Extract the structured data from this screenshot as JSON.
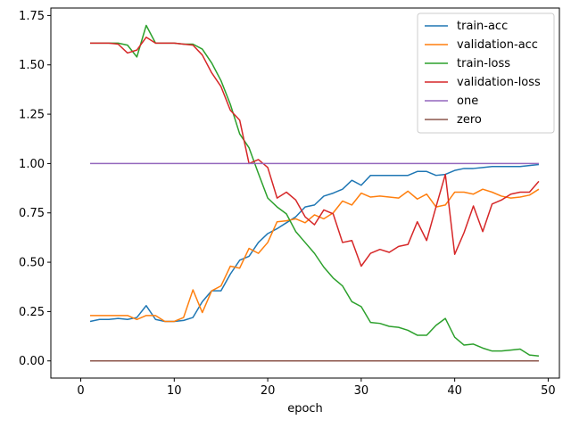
{
  "chart_data": {
    "type": "line",
    "title": "",
    "xlabel": "epoch",
    "ylabel": "",
    "xlim": [
      -3.2,
      51.2
    ],
    "ylim": [
      -0.087,
      1.788
    ],
    "xticks": [
      0,
      10,
      20,
      30,
      40,
      50
    ],
    "yticks": [
      0.0,
      0.25,
      0.5,
      0.75,
      1.0,
      1.25,
      1.5,
      1.75
    ],
    "ytick_labels": [
      "0.00",
      "0.25",
      "0.50",
      "0.75",
      "1.00",
      "1.25",
      "1.50",
      "1.75"
    ],
    "grid": false,
    "legend_position": "upper right",
    "x": [
      1,
      2,
      3,
      4,
      5,
      6,
      7,
      8,
      9,
      10,
      11,
      12,
      13,
      14,
      15,
      16,
      17,
      18,
      19,
      20,
      21,
      22,
      23,
      24,
      25,
      26,
      27,
      28,
      29,
      30,
      31,
      32,
      33,
      34,
      35,
      36,
      37,
      38,
      39,
      40,
      41,
      42,
      43,
      44,
      45,
      46,
      47,
      48,
      49
    ],
    "series": [
      {
        "name": "train-acc",
        "color": "#1f77b4",
        "values": [
          0.2,
          0.21,
          0.21,
          0.215,
          0.21,
          0.22,
          0.28,
          0.21,
          0.2,
          0.2,
          0.205,
          0.22,
          0.3,
          0.355,
          0.355,
          0.44,
          0.51,
          0.53,
          0.6,
          0.645,
          0.67,
          0.7,
          0.73,
          0.78,
          0.79,
          0.835,
          0.85,
          0.87,
          0.915,
          0.89,
          0.94,
          0.94,
          0.94,
          0.94,
          0.94,
          0.96,
          0.96,
          0.94,
          0.945,
          0.965,
          0.975,
          0.975,
          0.98,
          0.985,
          0.985,
          0.985,
          0.985,
          0.99,
          0.995
        ]
      },
      {
        "name": "validation-acc",
        "color": "#ff7f0e",
        "values": [
          0.23,
          0.23,
          0.23,
          0.23,
          0.23,
          0.21,
          0.23,
          0.23,
          0.2,
          0.2,
          0.22,
          0.36,
          0.245,
          0.355,
          0.38,
          0.48,
          0.47,
          0.57,
          0.545,
          0.6,
          0.705,
          0.71,
          0.72,
          0.7,
          0.74,
          0.72,
          0.75,
          0.81,
          0.79,
          0.85,
          0.83,
          0.835,
          0.83,
          0.825,
          0.86,
          0.82,
          0.845,
          0.78,
          0.79,
          0.855,
          0.855,
          0.845,
          0.87,
          0.855,
          0.835,
          0.825,
          0.83,
          0.84,
          0.87
        ]
      },
      {
        "name": "train-loss",
        "color": "#2ca02c",
        "values": [
          1.61,
          1.61,
          1.61,
          1.61,
          1.6,
          1.54,
          1.7,
          1.61,
          1.61,
          1.61,
          1.605,
          1.605,
          1.58,
          1.51,
          1.42,
          1.3,
          1.15,
          1.08,
          0.95,
          0.825,
          0.78,
          0.745,
          0.655,
          0.6,
          0.545,
          0.475,
          0.42,
          0.38,
          0.3,
          0.275,
          0.195,
          0.19,
          0.175,
          0.17,
          0.155,
          0.13,
          0.13,
          0.18,
          0.215,
          0.12,
          0.08,
          0.085,
          0.065,
          0.05,
          0.05,
          0.055,
          0.06,
          0.03,
          0.025
        ]
      },
      {
        "name": "validation-loss",
        "color": "#d62728",
        "values": [
          1.61,
          1.61,
          1.61,
          1.605,
          1.56,
          1.575,
          1.64,
          1.61,
          1.61,
          1.61,
          1.605,
          1.6,
          1.55,
          1.46,
          1.39,
          1.27,
          1.22,
          1.0,
          1.02,
          0.98,
          0.825,
          0.855,
          0.815,
          0.73,
          0.69,
          0.765,
          0.745,
          0.6,
          0.61,
          0.48,
          0.545,
          0.565,
          0.55,
          0.58,
          0.59,
          0.705,
          0.61,
          0.78,
          0.945,
          0.54,
          0.65,
          0.785,
          0.655,
          0.795,
          0.815,
          0.845,
          0.855,
          0.855,
          0.91
        ]
      },
      {
        "name": "one",
        "color": "#9467bd",
        "values": [
          1,
          1,
          1,
          1,
          1,
          1,
          1,
          1,
          1,
          1,
          1,
          1,
          1,
          1,
          1,
          1,
          1,
          1,
          1,
          1,
          1,
          1,
          1,
          1,
          1,
          1,
          1,
          1,
          1,
          1,
          1,
          1,
          1,
          1,
          1,
          1,
          1,
          1,
          1,
          1,
          1,
          1,
          1,
          1,
          1,
          1,
          1,
          1,
          1
        ]
      },
      {
        "name": "zero",
        "color": "#8c564b",
        "values": [
          0,
          0,
          0,
          0,
          0,
          0,
          0,
          0,
          0,
          0,
          0,
          0,
          0,
          0,
          0,
          0,
          0,
          0,
          0,
          0,
          0,
          0,
          0,
          0,
          0,
          0,
          0,
          0,
          0,
          0,
          0,
          0,
          0,
          0,
          0,
          0,
          0,
          0,
          0,
          0,
          0,
          0,
          0,
          0,
          0,
          0,
          0,
          0,
          0
        ]
      }
    ]
  }
}
